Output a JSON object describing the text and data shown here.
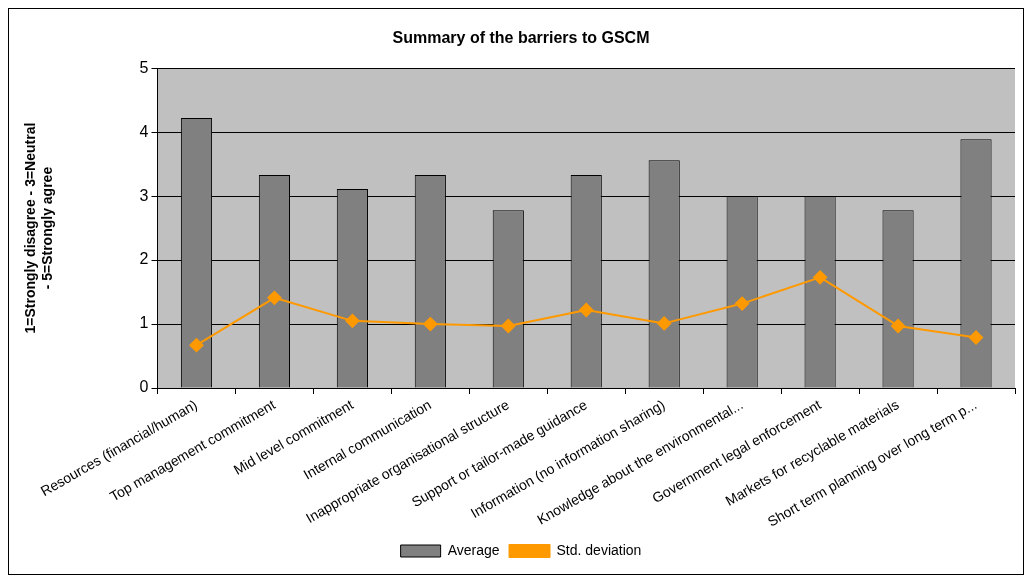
{
  "chart_data": {
    "type": "bar",
    "title": "Summary of the barriers to GSCM",
    "ylabel": "1=Strongly disagree - 3=Neutral - 5=Strongly agree",
    "categories": [
      "Resources (financial/human)",
      "Top management commitment",
      "Mid level commitment",
      "Internal communication",
      "Inappropriate organisational structure",
      "Support or tailor-made guidance",
      "Information (no information sharing)",
      "Knowledge about the environmental...",
      "Government legal enforcement",
      "Markets for recyclable materials",
      "Short term planning over long term p..."
    ],
    "series": [
      {
        "name": "Average",
        "color": "#808080",
        "values": [
          4.22,
          3.33,
          3.11,
          3.33,
          2.78,
          3.33,
          3.56,
          3.0,
          3.0,
          2.78,
          3.89
        ]
      },
      {
        "name": "Std. deviation",
        "type": "line",
        "color": "#ff9900",
        "marker": "diamond",
        "values": [
          0.67,
          1.41,
          1.05,
          1.0,
          0.97,
          1.22,
          1.01,
          1.32,
          1.73,
          0.97,
          0.79
        ]
      }
    ],
    "ylim": [
      0,
      5
    ],
    "yticks": [
      0,
      1,
      2,
      3,
      4,
      5
    ],
    "grid": "y",
    "legend": "bottom"
  }
}
